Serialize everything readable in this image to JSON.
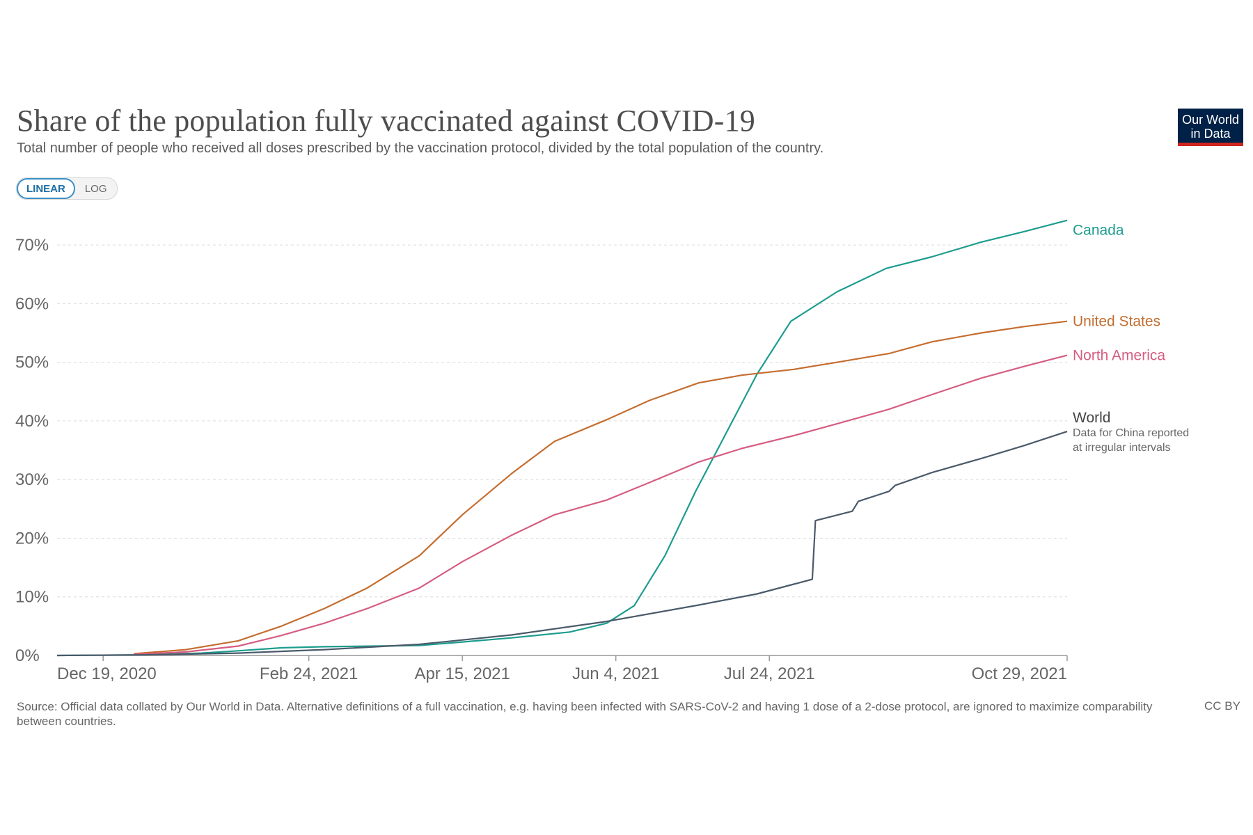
{
  "header": {
    "title": "Share of the population fully vaccinated against COVID-19",
    "subtitle": "Total number of people who received all doses prescribed by the vaccination protocol, divided by the total population of the country.",
    "logo_line1": "Our World",
    "logo_line2": "in Data"
  },
  "controls": {
    "linear_label": "LINEAR",
    "log_label": "LOG",
    "selected": "LINEAR"
  },
  "footer": {
    "source": "Source: Official data collated by Our World in Data. Alternative definitions of a full vaccination, e.g. having been infected with SARS-CoV-2 and having 1 dose of a 2-dose protocol, are ignored to maximize comparability between countries.",
    "license": "CC BY"
  },
  "chart_data": {
    "type": "line",
    "title": "Share of the population fully vaccinated against COVID-19",
    "xlabel": "",
    "ylabel": "",
    "x_ticks": [
      "Dec 19, 2020",
      "Feb 24, 2021",
      "Apr 15, 2021",
      "Jun 4, 2021",
      "Jul 24, 2021",
      "Oct 29, 2021"
    ],
    "y_ticks": [
      "0%",
      "10%",
      "20%",
      "30%",
      "40%",
      "50%",
      "60%",
      "70%"
    ],
    "xlim": [
      "2020-12-04",
      "2021-10-29"
    ],
    "ylim": [
      0,
      75
    ],
    "grid": "horizontal dashed",
    "legend": "end-of-line labels",
    "series": [
      {
        "name": "Canada",
        "color": "#1d9c8e",
        "points": [
          [
            "2020-12-04",
            0
          ],
          [
            "2021-01-01",
            0.1
          ],
          [
            "2021-01-20",
            0.4
          ],
          [
            "2021-02-01",
            0.8
          ],
          [
            "2021-02-15",
            1.3
          ],
          [
            "2021-03-01",
            1.5
          ],
          [
            "2021-04-01",
            1.7
          ],
          [
            "2021-04-15",
            2.3
          ],
          [
            "2021-05-01",
            3.0
          ],
          [
            "2021-05-20",
            4.0
          ],
          [
            "2021-06-01",
            5.5
          ],
          [
            "2021-06-10",
            8.5
          ],
          [
            "2021-06-20",
            17
          ],
          [
            "2021-06-30",
            28
          ],
          [
            "2021-07-10",
            38
          ],
          [
            "2021-07-20",
            48
          ],
          [
            "2021-07-31",
            57
          ],
          [
            "2021-08-15",
            62
          ],
          [
            "2021-08-31",
            66
          ],
          [
            "2021-09-15",
            68
          ],
          [
            "2021-10-01",
            70.5
          ],
          [
            "2021-10-15",
            72.3
          ],
          [
            "2021-10-29",
            74.2
          ]
        ]
      },
      {
        "name": "United States",
        "color": "#c46d30",
        "points": [
          [
            "2020-12-29",
            0.3
          ],
          [
            "2021-01-15",
            1.0
          ],
          [
            "2021-02-01",
            2.5
          ],
          [
            "2021-02-15",
            5.0
          ],
          [
            "2021-03-01",
            8.0
          ],
          [
            "2021-03-15",
            11.5
          ],
          [
            "2021-04-01",
            17
          ],
          [
            "2021-04-15",
            24
          ],
          [
            "2021-05-01",
            31
          ],
          [
            "2021-05-15",
            36.5
          ],
          [
            "2021-06-01",
            40.2
          ],
          [
            "2021-06-15",
            43.5
          ],
          [
            "2021-07-01",
            46.5
          ],
          [
            "2021-07-15",
            47.8
          ],
          [
            "2021-08-01",
            48.8
          ],
          [
            "2021-08-15",
            50
          ],
          [
            "2021-09-01",
            51.5
          ],
          [
            "2021-09-15",
            53.5
          ],
          [
            "2021-10-01",
            55
          ],
          [
            "2021-10-15",
            56.1
          ],
          [
            "2021-10-29",
            57.0
          ]
        ]
      },
      {
        "name": "North America",
        "color": "#d55d80",
        "points": [
          [
            "2020-12-29",
            0.2
          ],
          [
            "2021-01-15",
            0.6
          ],
          [
            "2021-02-01",
            1.6
          ],
          [
            "2021-02-15",
            3.4
          ],
          [
            "2021-03-01",
            5.5
          ],
          [
            "2021-03-15",
            8.0
          ],
          [
            "2021-04-01",
            11.5
          ],
          [
            "2021-04-15",
            16
          ],
          [
            "2021-05-01",
            20.5
          ],
          [
            "2021-05-15",
            24
          ],
          [
            "2021-06-01",
            26.5
          ],
          [
            "2021-06-15",
            29.5
          ],
          [
            "2021-07-01",
            33
          ],
          [
            "2021-07-15",
            35.3
          ],
          [
            "2021-08-01",
            37.5
          ],
          [
            "2021-08-15",
            39.5
          ],
          [
            "2021-09-01",
            42
          ],
          [
            "2021-09-15",
            44.5
          ],
          [
            "2021-10-01",
            47.3
          ],
          [
            "2021-10-15",
            49.3
          ],
          [
            "2021-10-29",
            51.2
          ]
        ]
      },
      {
        "name": "World",
        "annotation": "Data for China reported at irregular intervals",
        "color": "#4a5a6a",
        "points": [
          [
            "2020-12-04",
            0
          ],
          [
            "2021-01-01",
            0.1
          ],
          [
            "2021-02-01",
            0.4
          ],
          [
            "2021-03-01",
            1.0
          ],
          [
            "2021-04-01",
            1.9
          ],
          [
            "2021-05-01",
            3.5
          ],
          [
            "2021-06-01",
            5.8
          ],
          [
            "2021-07-01",
            8.6
          ],
          [
            "2021-07-20",
            10.5
          ],
          [
            "2021-08-07",
            13.0
          ],
          [
            "2021-08-08",
            23.0
          ],
          [
            "2021-08-20",
            24.6
          ],
          [
            "2021-08-22",
            26.3
          ],
          [
            "2021-09-01",
            28.0
          ],
          [
            "2021-09-03",
            29.0
          ],
          [
            "2021-09-15",
            31.2
          ],
          [
            "2021-10-01",
            33.6
          ],
          [
            "2021-10-15",
            35.8
          ],
          [
            "2021-10-29",
            38.2
          ]
        ]
      }
    ]
  }
}
